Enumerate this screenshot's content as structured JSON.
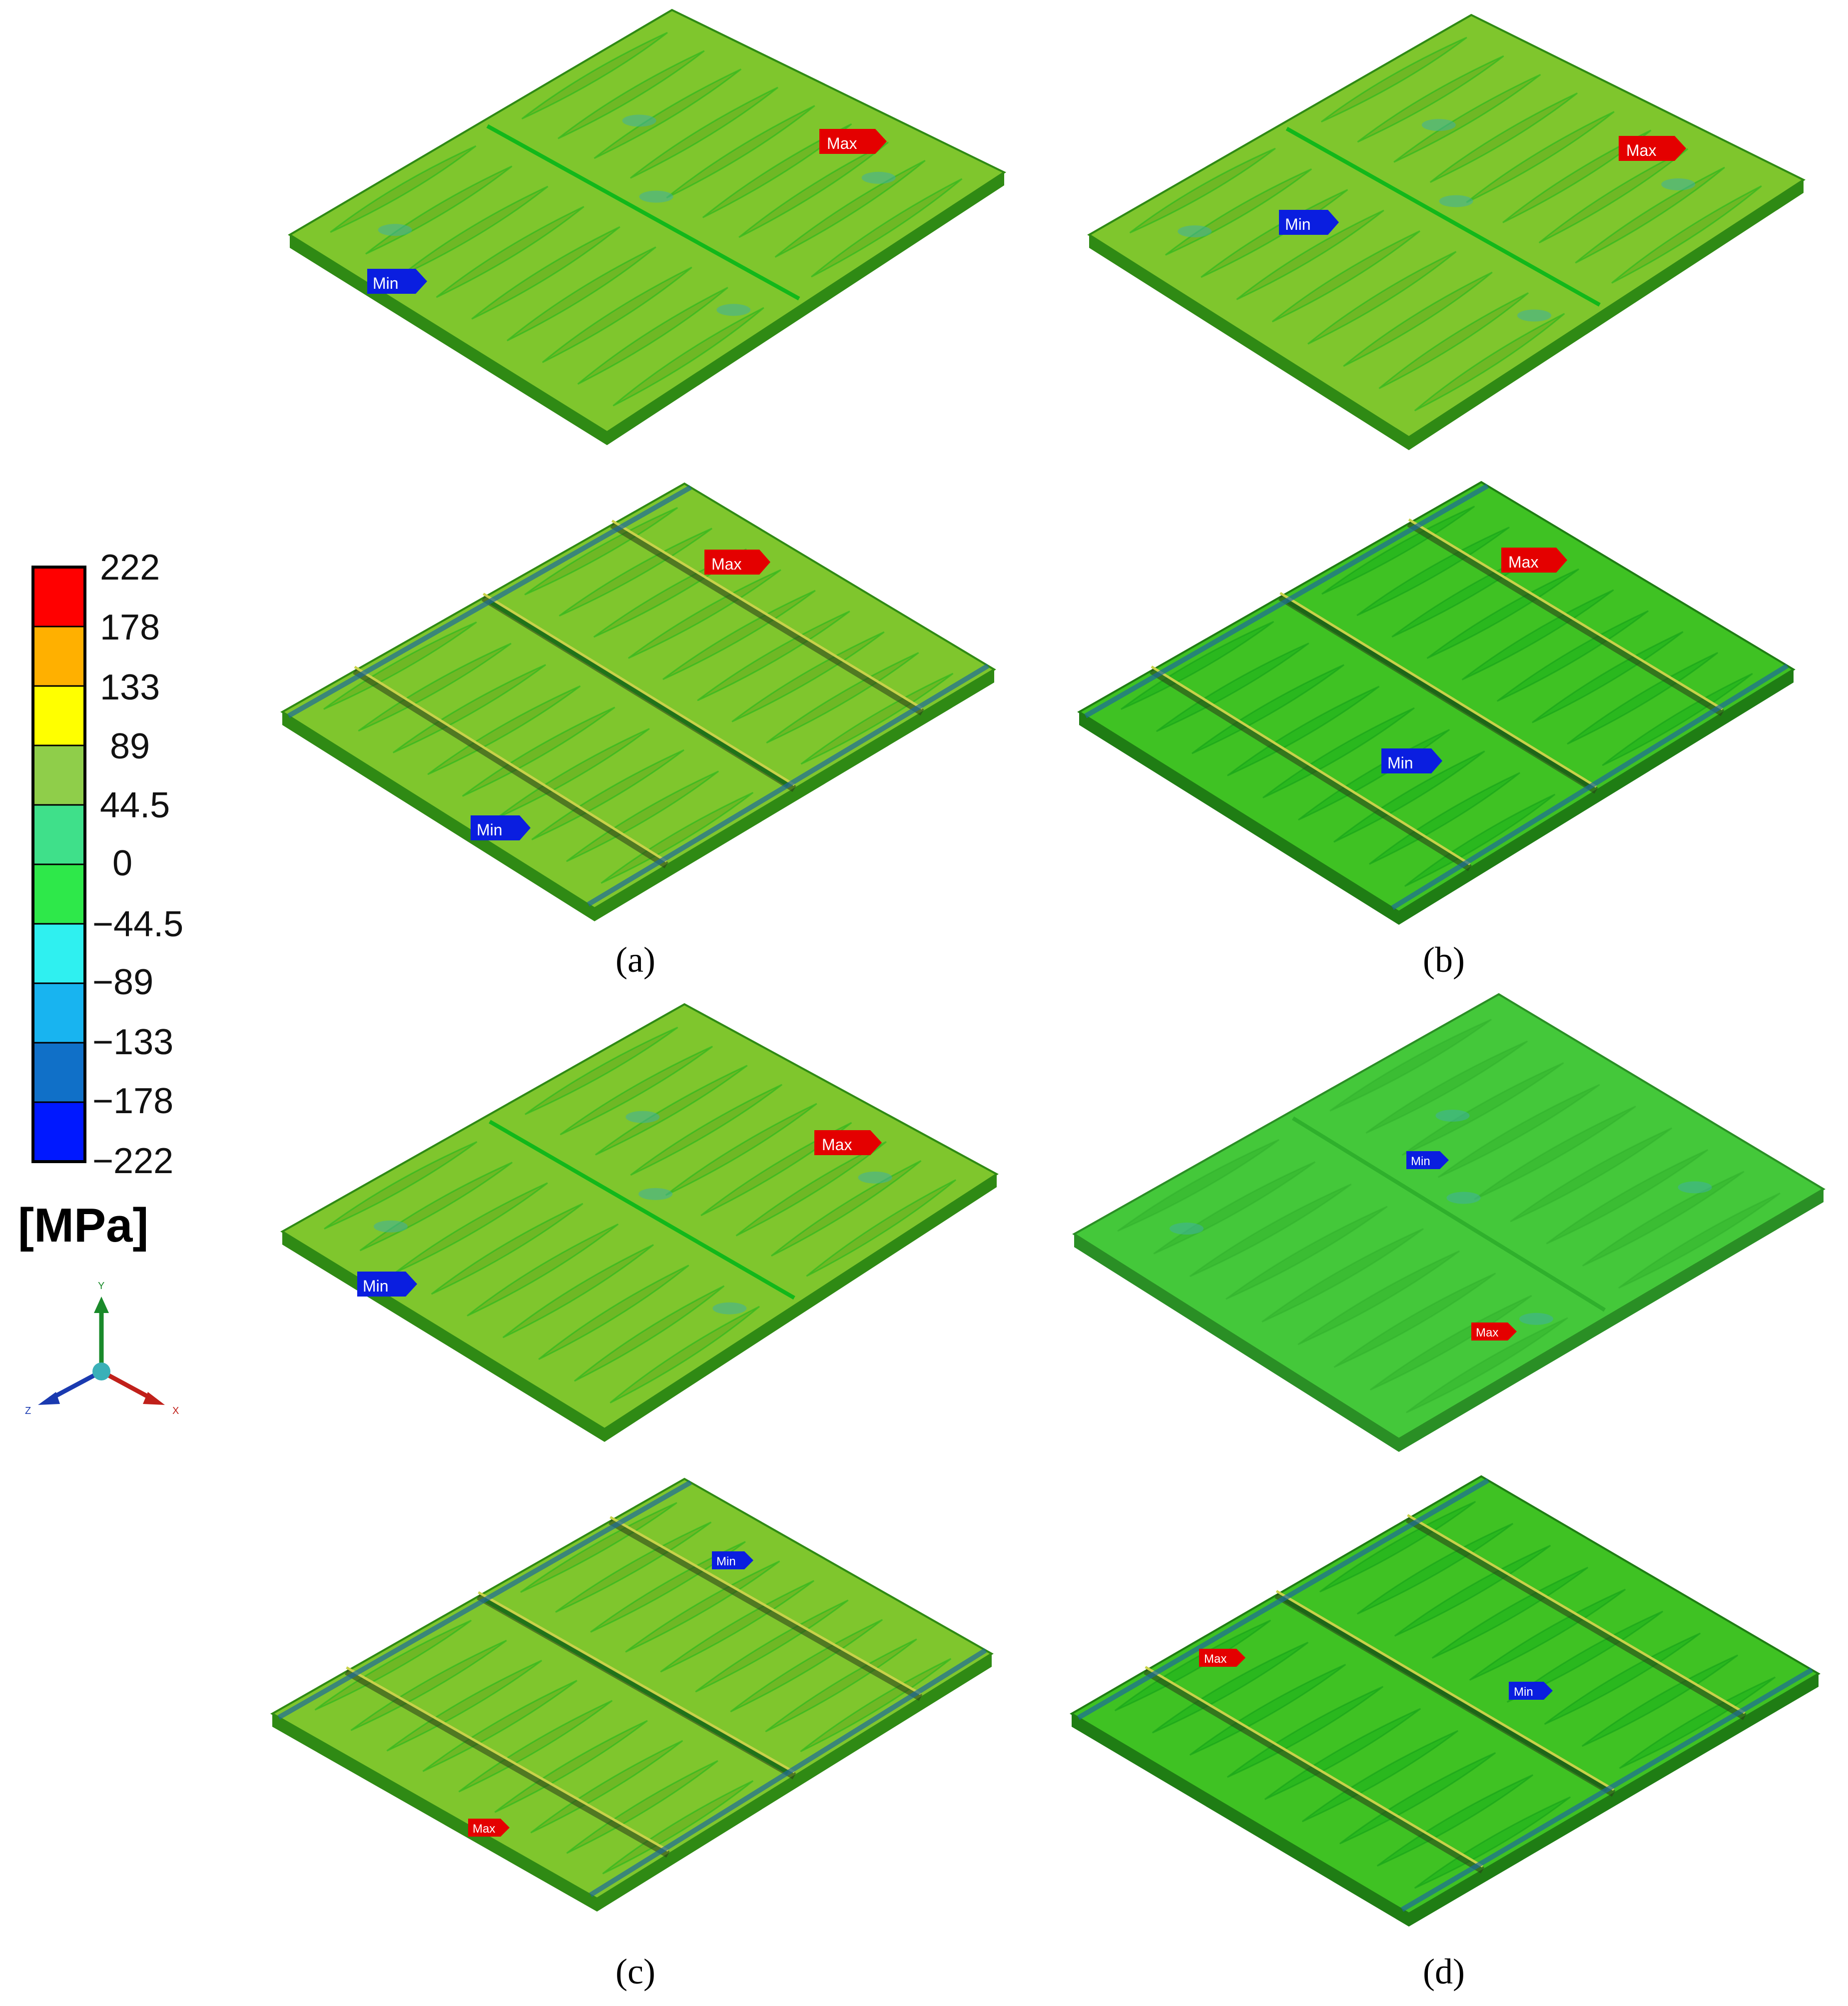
{
  "legend": {
    "ticks": [
      "222",
      "178",
      "133",
      "89",
      "44.5",
      "0",
      "−44.5",
      "−89",
      "−133",
      "−178",
      "−222"
    ],
    "band_colors": [
      "#ff0000",
      "#ffb000",
      "#ffff00",
      "#8fce4a",
      "#3fe08a",
      "#2ee84a",
      "#2ff0f0",
      "#18b4f0",
      "#1070c8",
      "#0018ff"
    ],
    "unit": "[MPa]"
  },
  "triad": {
    "y": "Y",
    "x": "X",
    "z": "Z"
  },
  "tags": {
    "max": "Max",
    "min": "Min"
  },
  "captions": {
    "a": "(a)",
    "b": "(b)",
    "c": "(c)",
    "d": "(d)"
  },
  "colors": {
    "plate_light": "#7fc62d",
    "plate_dark": "#12b81a",
    "max_tag": "#e40000",
    "min_tag": "#0a1ee0"
  }
}
